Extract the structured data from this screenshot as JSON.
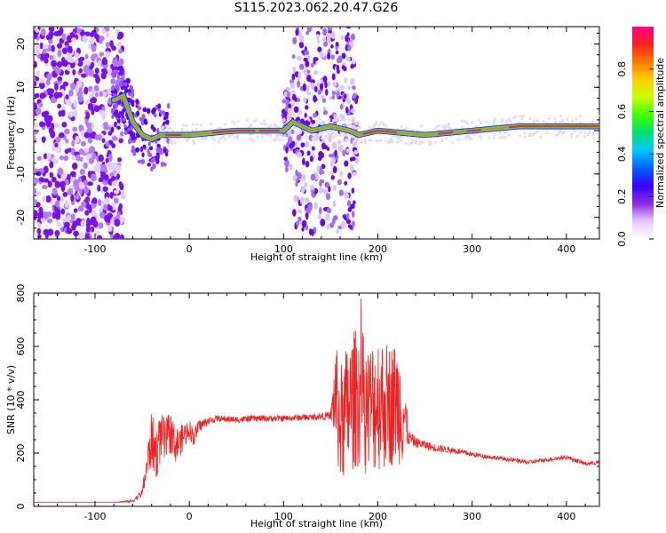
{
  "title": "S115.2023.062.20.47.G26",
  "colors": {
    "snr_line": "#ee2222",
    "spectrogram_points": "#7a10f0",
    "colormap": [
      "#ffffff",
      "#e6c8ff",
      "#8a2be2",
      "#3a00ff",
      "#0060ff",
      "#00c8ff",
      "#00e070",
      "#40ff00",
      "#c8ff00",
      "#ffd000",
      "#ff7a00",
      "#ff2020",
      "#ff0088"
    ]
  },
  "chart_data": [
    {
      "type": "heatmap",
      "title": "S115.2023.062.20.47.G26",
      "xlabel": "Height of straight line (km)",
      "ylabel": "Frequency (Hz)",
      "xlim": [
        -165,
        435
      ],
      "ylim": [
        -25,
        24
      ],
      "x_ticks": [
        -100,
        0,
        100,
        200,
        300,
        400
      ],
      "x_tick_labels": [
        "-100",
        "0",
        "100",
        "200",
        "300",
        "400"
      ],
      "y_ticks": [
        -20,
        -10,
        0,
        10,
        20
      ],
      "y_tick_labels": [
        "-20",
        "-10",
        "0",
        "10",
        "20"
      ],
      "colorbar": {
        "label": "Normalized spectral amplitude",
        "range": [
          0,
          1
        ],
        "ticks": [
          0.0,
          0.2,
          0.4,
          0.6,
          0.8
        ],
        "tick_labels": [
          "0.0",
          "0.2",
          "0.4",
          "0.6",
          "0.8"
        ]
      },
      "ridge": {
        "x": [
          -80,
          -70,
          -60,
          -50,
          -40,
          -30,
          -20,
          0,
          50,
          100,
          110,
          130,
          150,
          170,
          180,
          200,
          250,
          300,
          350,
          400,
          435
        ],
        "y": [
          7,
          8,
          2,
          -1,
          -2,
          -1,
          -1,
          -1,
          0,
          0,
          2,
          0,
          1,
          0,
          -1,
          0,
          -1,
          0,
          1,
          1,
          1
        ]
      }
    },
    {
      "type": "line",
      "xlabel": "Height of straight line (km)",
      "ylabel": "SNR (10 * v/v)",
      "xlim": [
        -165,
        435
      ],
      "ylim": [
        0,
        800
      ],
      "x_ticks": [
        -100,
        0,
        100,
        200,
        300,
        400
      ],
      "x_tick_labels": [
        "-100",
        "0",
        "100",
        "200",
        "300",
        "400"
      ],
      "y_ticks": [
        0,
        200,
        400,
        600,
        800
      ],
      "y_tick_labels": [
        "0",
        "200",
        "400",
        "600",
        "800"
      ],
      "series": [
        {
          "x": [
            -165,
            -120,
            -80,
            -60,
            -50,
            -45,
            -40,
            -35,
            -30,
            -25,
            -20,
            -15,
            -10,
            -5,
            0,
            5,
            10,
            20,
            30,
            50,
            70,
            100,
            130,
            150,
            155,
            160,
            170,
            180,
            190,
            200,
            210,
            220,
            228,
            232,
            240,
            260,
            280,
            300,
            320,
            340,
            360,
            380,
            400,
            420,
            435
          ],
          "y": [
            15,
            15,
            15,
            20,
            50,
            150,
            250,
            200,
            260,
            240,
            280,
            230,
            240,
            270,
            290,
            260,
            300,
            320,
            330,
            325,
            330,
            330,
            335,
            340,
            420,
            300,
            380,
            420,
            360,
            400,
            380,
            390,
            350,
            260,
            240,
            220,
            210,
            195,
            185,
            175,
            165,
            175,
            185,
            160,
            165
          ],
          "spread": [
            0,
            0,
            0,
            5,
            15,
            60,
            110,
            100,
            90,
            90,
            80,
            70,
            60,
            50,
            40,
            35,
            25,
            15,
            12,
            12,
            12,
            12,
            12,
            15,
            200,
            230,
            260,
            270,
            250,
            270,
            240,
            230,
            200,
            30,
            20,
            15,
            12,
            10,
            8,
            8,
            8,
            8,
            8,
            8,
            8
          ]
        }
      ]
    }
  ]
}
